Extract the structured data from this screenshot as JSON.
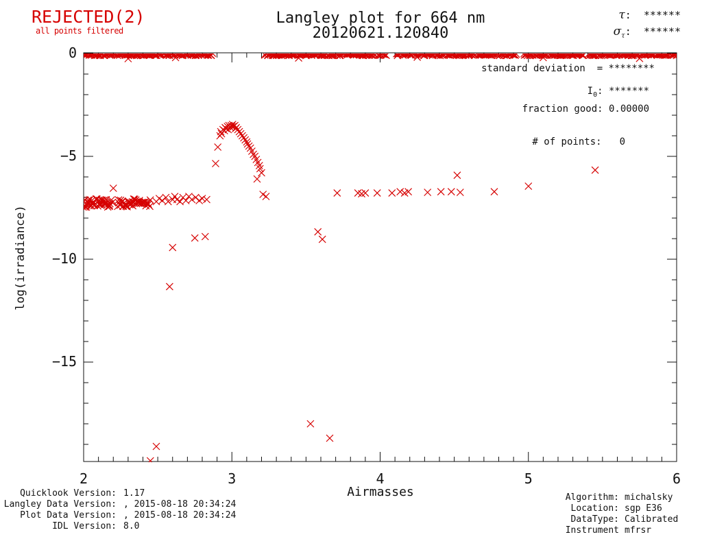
{
  "header": {
    "rejected_label": "REJECTED(2)",
    "rejected_sub": "all points filtered",
    "title_line1": "Langley plot for 664 nm",
    "title_line2": "20120621.120840",
    "tau_symbol": "τ",
    "tau_colon": ":  ",
    "tau_value": "******",
    "sigma_symbol": "σ",
    "sigma_sub": "τ",
    "sigma_colon": ":  ",
    "sigma_value": "******"
  },
  "annotations": {
    "std_dev": "standard deviation  = ********",
    "i0_pre": "I",
    "i0_sub": "0",
    "i0_post": ": *******",
    "fraction_good": "fraction good: 0.00000",
    "num_points_label": "# of points:",
    "num_points_value": "0"
  },
  "footer_left": {
    "rows": [
      {
        "label": "Quicklook Version:",
        "value": "1.17"
      },
      {
        "label": "Langley Data Version:",
        "value": ", 2015-08-18 20:34:24"
      },
      {
        "label": "Plot Data Version:",
        "value": ", 2015-08-18 20:34:24"
      },
      {
        "label": "IDL Version:",
        "value": "8.0"
      }
    ]
  },
  "footer_right": {
    "rows": [
      {
        "label": "Algorithm:",
        "value": "michalsky"
      },
      {
        "label": "Location:",
        "value": "sgp E36"
      },
      {
        "label": "DataType:",
        "value": "Calibrated"
      },
      {
        "label": "Instrument",
        "value": "mfrsr"
      }
    ]
  },
  "colors": {
    "accent_red": "#d60000",
    "axis_black": "#111111",
    "background": "#ffffff"
  },
  "chart_data": {
    "type": "scatter",
    "marker": "x",
    "title": "Langley plot for 664 nm 20120621.120840",
    "xlabel": "Airmasses",
    "ylabel": "log(irradiance)",
    "xlim": [
      2,
      6
    ],
    "ylim": [
      -19.83,
      0
    ],
    "grid": false,
    "x_major_ticks": [
      2,
      3,
      4,
      5,
      6
    ],
    "x_tick_labels": [
      "2",
      "3",
      "4",
      "5",
      "6"
    ],
    "x_minor_step": 0.1,
    "y_major_ticks": [
      0,
      -5,
      -10,
      -15
    ],
    "y_tick_labels": [
      "0",
      "−5",
      "−10",
      "−15"
    ],
    "y_minor_step": 1,
    "band_segments": [
      {
        "x0": 2.0,
        "x1": 2.87,
        "y": -0.04,
        "n": 170,
        "jitter": 0.06,
        "seed": 11,
        "note": "rejected points clipped at log(irradiance)=0"
      },
      {
        "x0": 3.22,
        "x1": 4.04,
        "y": -0.04,
        "n": 160,
        "jitter": 0.06,
        "seed": 22
      },
      {
        "x0": 4.11,
        "x1": 4.92,
        "y": -0.04,
        "n": 150,
        "jitter": 0.06,
        "seed": 33
      },
      {
        "x0": 4.97,
        "x1": 5.37,
        "y": -0.04,
        "n": 80,
        "jitter": 0.06,
        "seed": 44
      },
      {
        "x0": 5.41,
        "x1": 6.0,
        "y": -0.04,
        "n": 115,
        "jitter": 0.06,
        "seed": 55
      },
      {
        "x0": 2.0,
        "x1": 2.19,
        "y": -7.27,
        "n": 42,
        "jitter": 0.2,
        "seed": 66
      },
      {
        "x0": 2.23,
        "x1": 2.45,
        "y": -7.25,
        "n": 44,
        "jitter": 0.2,
        "seed": 77
      }
    ],
    "points": [
      [
        2.3,
        -0.25
      ],
      [
        2.62,
        -0.2
      ],
      [
        3.45,
        -0.22
      ],
      [
        4.25,
        -0.18
      ],
      [
        5.1,
        -0.2
      ],
      [
        5.75,
        -0.24
      ],
      [
        2.2,
        -6.55
      ],
      [
        2.49,
        -7.2
      ],
      [
        2.51,
        -7.05
      ],
      [
        2.53,
        -7.15
      ],
      [
        2.555,
        -7.0
      ],
      [
        2.57,
        -7.2
      ],
      [
        2.6,
        -7.1
      ],
      [
        2.615,
        -6.95
      ],
      [
        2.63,
        -7.1
      ],
      [
        2.65,
        -7.2
      ],
      [
        2.67,
        -7.0
      ],
      [
        2.69,
        -7.15
      ],
      [
        2.71,
        -6.95
      ],
      [
        2.73,
        -7.1
      ],
      [
        2.755,
        -7.0
      ],
      [
        2.78,
        -7.15
      ],
      [
        2.8,
        -7.05
      ],
      [
        2.83,
        -7.1
      ],
      [
        2.89,
        -5.35
      ],
      [
        2.905,
        -4.55
      ],
      [
        2.92,
        -4.0
      ],
      [
        2.925,
        -3.8
      ],
      [
        2.93,
        -3.9
      ],
      [
        2.94,
        -3.7
      ],
      [
        2.95,
        -3.75
      ],
      [
        2.955,
        -3.6
      ],
      [
        2.96,
        -3.65
      ],
      [
        2.97,
        -3.55
      ],
      [
        2.975,
        -3.7
      ],
      [
        2.98,
        -3.5
      ],
      [
        2.99,
        -3.6
      ],
      [
        2.995,
        -3.5
      ],
      [
        3.0,
        -3.55
      ],
      [
        3.005,
        -3.45
      ],
      [
        3.01,
        -3.55
      ],
      [
        3.02,
        -3.5
      ],
      [
        3.025,
        -3.65
      ],
      [
        3.03,
        -3.6
      ],
      [
        3.04,
        -3.7
      ],
      [
        3.05,
        -3.8
      ],
      [
        3.06,
        -3.9
      ],
      [
        3.07,
        -4.0
      ],
      [
        3.08,
        -4.1
      ],
      [
        3.09,
        -4.2
      ],
      [
        3.1,
        -4.3
      ],
      [
        3.105,
        -4.4
      ],
      [
        3.115,
        -4.5
      ],
      [
        3.125,
        -4.6
      ],
      [
        3.135,
        -4.75
      ],
      [
        3.145,
        -4.9
      ],
      [
        3.155,
        -5.0
      ],
      [
        3.165,
        -5.15
      ],
      [
        3.175,
        -5.3
      ],
      [
        3.185,
        -5.45
      ],
      [
        3.19,
        -5.6
      ],
      [
        3.2,
        -5.8
      ],
      [
        3.17,
        -6.1
      ],
      [
        3.21,
        -6.85
      ],
      [
        3.23,
        -6.95
      ],
      [
        2.58,
        -11.33
      ],
      [
        2.6,
        -9.43
      ],
      [
        2.75,
        -8.97
      ],
      [
        2.82,
        -8.9
      ],
      [
        2.49,
        -19.1
      ],
      [
        2.45,
        -19.8
      ],
      [
        3.58,
        -8.67
      ],
      [
        3.61,
        -9.03
      ],
      [
        3.53,
        -18.0
      ],
      [
        3.66,
        -18.7
      ],
      [
        3.71,
        -6.78
      ],
      [
        3.85,
        -6.78
      ],
      [
        3.875,
        -6.82
      ],
      [
        3.9,
        -6.78
      ],
      [
        3.98,
        -6.78
      ],
      [
        4.08,
        -6.78
      ],
      [
        4.135,
        -6.72
      ],
      [
        4.165,
        -6.78
      ],
      [
        4.19,
        -6.72
      ],
      [
        4.32,
        -6.75
      ],
      [
        4.41,
        -6.72
      ],
      [
        4.48,
        -6.72
      ],
      [
        4.54,
        -6.75
      ],
      [
        4.52,
        -5.92
      ],
      [
        4.77,
        -6.72
      ],
      [
        5.0,
        -6.45
      ],
      [
        5.45,
        -5.67
      ]
    ]
  }
}
